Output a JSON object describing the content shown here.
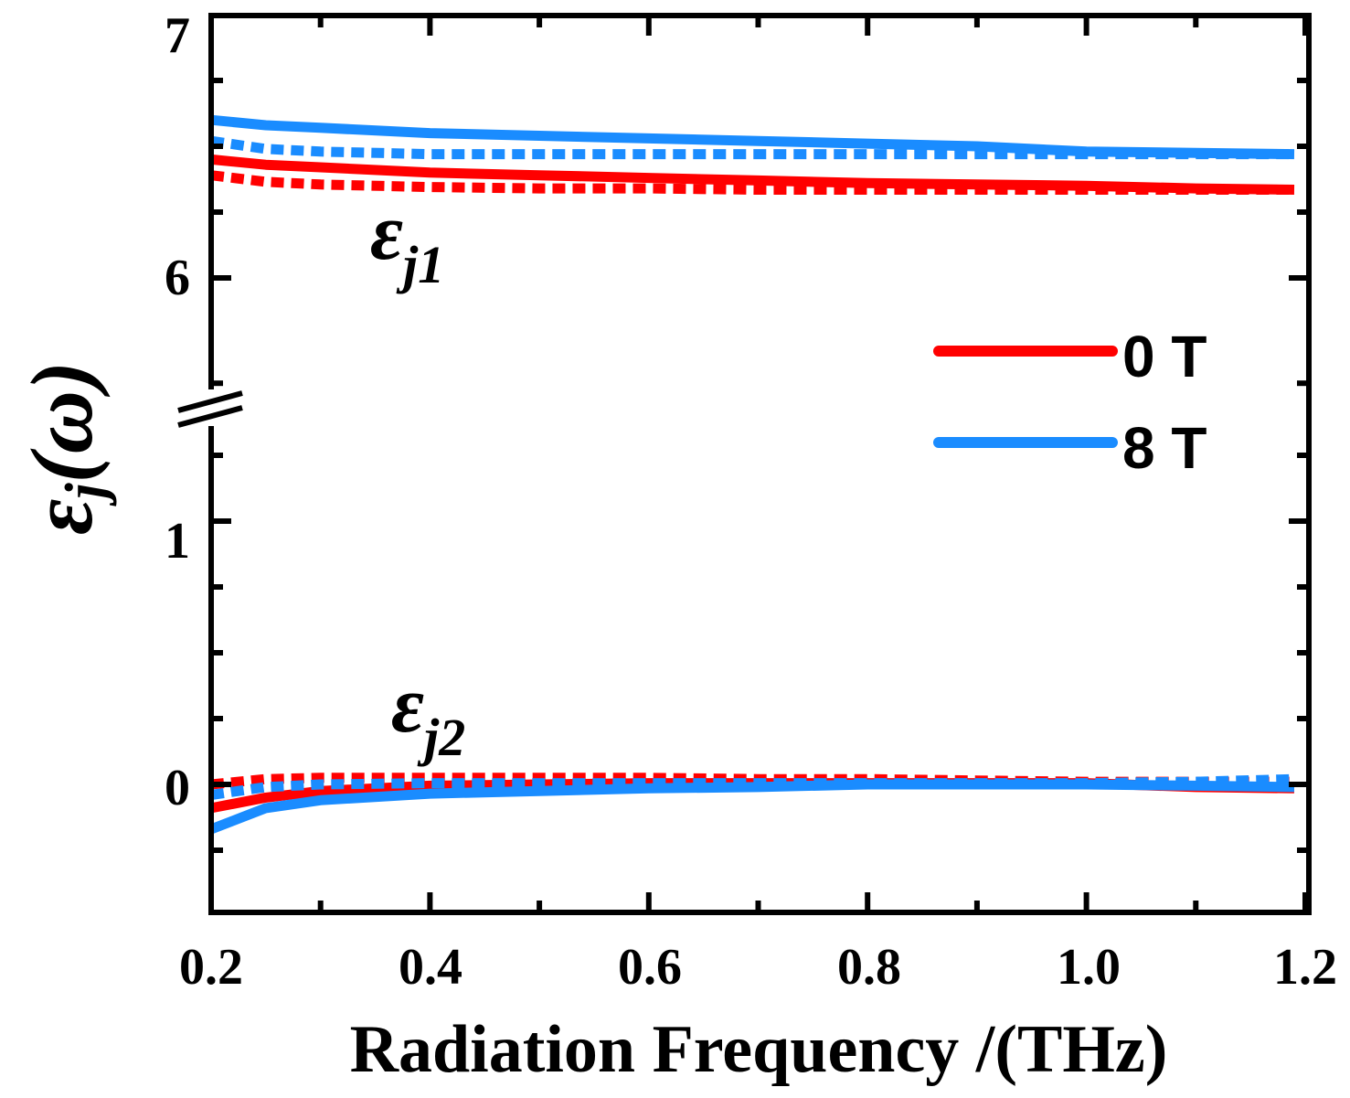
{
  "chart_data": {
    "type": "line",
    "xlabel": "Radiation Frequency /(THz)",
    "ylabel": "ε",
    "ylabel_sub": "j",
    "ylabel_paren": "(ω)",
    "xlim": [
      0.2,
      1.2
    ],
    "xticks": [
      "0.2",
      "0.4",
      "0.6",
      "0.8",
      "1.0",
      "1.2"
    ],
    "ylim_lower": [
      -0.5,
      1.5
    ],
    "ylim_upper": [
      5.5,
      7
    ],
    "yticks": [
      "0",
      "1",
      "6",
      "7"
    ],
    "axis_break": true,
    "annotations": [
      {
        "main": "ε",
        "sub": "j1"
      },
      {
        "main": "ε",
        "sub": "j2"
      }
    ],
    "legend": {
      "position": "right",
      "entries": [
        {
          "label": "0 T",
          "color": "#ff0000"
        },
        {
          "label": "8 T",
          "color": "#1a8cff"
        }
      ]
    },
    "x": [
      0.2,
      0.25,
      0.3,
      0.4,
      0.5,
      0.6,
      0.7,
      0.8,
      0.9,
      1.0,
      1.1,
      1.19
    ],
    "series": [
      {
        "name": "0 T",
        "component": "εj1",
        "style": "solid",
        "color": "#ff0000",
        "values": [
          6.45,
          6.43,
          6.42,
          6.4,
          6.39,
          6.38,
          6.37,
          6.36,
          6.355,
          6.35,
          6.34,
          6.335
        ]
      },
      {
        "name": "0 T",
        "component": "εj1",
        "style": "dashed",
        "color": "#ff0000",
        "values": [
          6.39,
          6.365,
          6.355,
          6.345,
          6.34,
          6.34,
          6.335,
          6.335,
          6.335,
          6.335,
          6.335,
          6.335
        ]
      },
      {
        "name": "8 T",
        "component": "εj1",
        "style": "solid",
        "color": "#1a8cff",
        "values": [
          6.6,
          6.58,
          6.57,
          6.55,
          6.54,
          6.53,
          6.52,
          6.51,
          6.5,
          6.48,
          6.475,
          6.47
        ]
      },
      {
        "name": "8 T",
        "component": "εj1",
        "style": "dashed",
        "color": "#1a8cff",
        "values": [
          6.52,
          6.49,
          6.48,
          6.47,
          6.47,
          6.47,
          6.47,
          6.47,
          6.47,
          6.47,
          6.47,
          6.47
        ]
      },
      {
        "name": "0 T",
        "component": "εj2",
        "style": "solid",
        "color": "#ff0000",
        "values": [
          -0.09,
          -0.05,
          -0.025,
          -0.005,
          0.0,
          0.005,
          0.005,
          0.005,
          0.005,
          0.005,
          -0.01,
          -0.015
        ]
      },
      {
        "name": "0 T",
        "component": "εj2",
        "style": "dashed",
        "color": "#ff0000",
        "values": [
          0.0,
          0.02,
          0.025,
          0.025,
          0.025,
          0.025,
          0.02,
          0.02,
          0.015,
          0.01,
          0.01,
          0.01
        ]
      },
      {
        "name": "8 T",
        "component": "εj2",
        "style": "solid",
        "color": "#1a8cff",
        "values": [
          -0.17,
          -0.09,
          -0.06,
          -0.035,
          -0.025,
          -0.015,
          -0.01,
          0.0,
          0.0,
          0.0,
          -0.005,
          -0.01
        ]
      },
      {
        "name": "8 T",
        "component": "εj2",
        "style": "dashed",
        "color": "#1a8cff",
        "values": [
          -0.04,
          -0.01,
          0.0,
          0.005,
          0.005,
          0.005,
          0.005,
          0.005,
          0.005,
          0.005,
          0.01,
          0.02
        ]
      }
    ]
  }
}
